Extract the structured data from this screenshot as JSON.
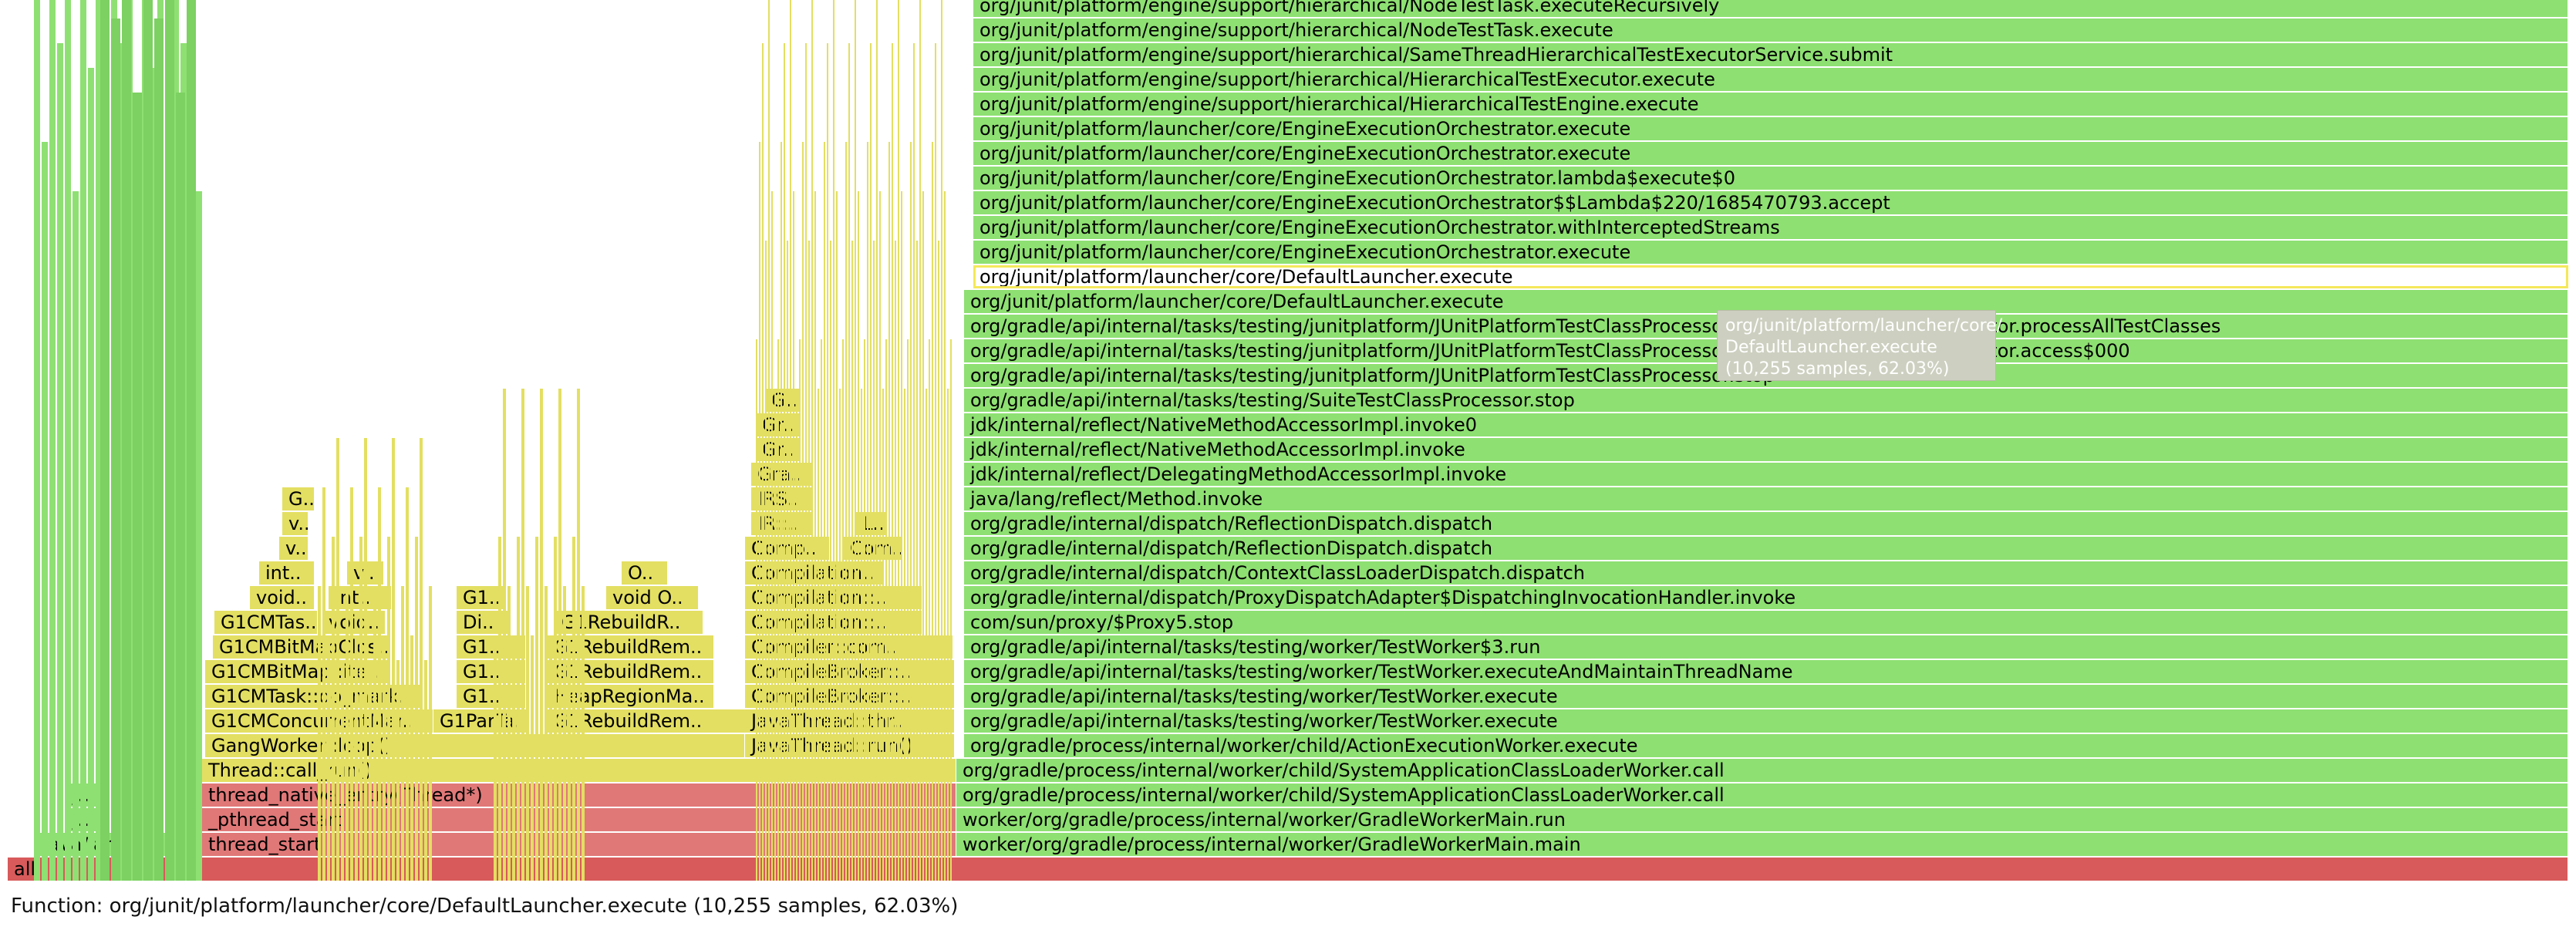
{
  "status_line": "Function: org/junit/platform/launcher/core/DefaultLauncher.execute (10,255 samples, 62.03%)",
  "tooltip": {
    "line1": "org/junit/platform/launcher/core/",
    "line2": "DefaultLauncher.execute",
    "line3": "(10,255 samples, 62.03%)"
  },
  "colors": {
    "root": "#d85a5a",
    "native": "#e07878",
    "vm": "#e3df62",
    "java": "#8ee072",
    "java_dark": "#7dd062"
  },
  "frames": [
    {
      "label": "all",
      "kind": "root"
    },
    {
      "label": "java/lang/..",
      "kind": "java"
    },
    {
      "label": "thread_start",
      "kind": "native"
    },
    {
      "label": "worker/org/gradle/process/internal/worker/GradleWorkerMain.main",
      "kind": "java"
    },
    {
      "label": "j..",
      "kind": "java"
    },
    {
      "label": "_pthread_start",
      "kind": "native"
    },
    {
      "label": "worker/org/gradle/process/internal/worker/GradleWorkerMain.run",
      "kind": "java"
    },
    {
      "label": "j..",
      "kind": "java"
    },
    {
      "label": "thread_native_entry(Thread*)",
      "kind": "native"
    },
    {
      "label": "org/gradle/process/internal/worker/child/SystemApplicationClassLoaderWorker.call",
      "kind": "java"
    },
    {
      "label": "Thread::call_run()",
      "kind": "vm"
    },
    {
      "label": "org/gradle/process/internal/worker/child/SystemApplicationClassLoaderWorker.call",
      "kind": "java"
    },
    {
      "label": "GangWorker::loop()",
      "kind": "vm"
    },
    {
      "label": "JavaThread::run()",
      "kind": "vm"
    },
    {
      "label": "org/gradle/process/internal/worker/child/ActionExecutionWorker.execute",
      "kind": "java"
    },
    {
      "label": "G1CMConcurrentMar..",
      "kind": "vm"
    },
    {
      "label": "G1ParTa..",
      "kind": "vm"
    },
    {
      "label": "G1RebuildRem..",
      "kind": "vm"
    },
    {
      "label": "JavaThread::thr..",
      "kind": "vm"
    },
    {
      "label": "org/gradle/api/internal/tasks/testing/worker/TestWorker.execute",
      "kind": "java"
    },
    {
      "label": "G1CMTask::do_mark..",
      "kind": "vm"
    },
    {
      "label": "G1..",
      "kind": "vm"
    },
    {
      "label": "HeapRegionMa..",
      "kind": "vm"
    },
    {
      "label": "CompileBroker::..",
      "kind": "vm"
    },
    {
      "label": "org/gradle/api/internal/tasks/testing/worker/TestWorker.execute",
      "kind": "java"
    },
    {
      "label": "G1CMBitMap::ite..",
      "kind": "vm"
    },
    {
      "label": "G1..",
      "kind": "vm"
    },
    {
      "label": "G1RebuildRem..",
      "kind": "vm"
    },
    {
      "label": "CompileBroker::..",
      "kind": "vm"
    },
    {
      "label": "org/gradle/api/internal/tasks/testing/worker/TestWorker.executeAndMaintainThreadName",
      "kind": "java"
    },
    {
      "label": "G1CMBitMapClos..",
      "kind": "vm"
    },
    {
      "label": "G1..",
      "kind": "vm"
    },
    {
      "label": "G1RebuildRem..",
      "kind": "vm"
    },
    {
      "label": "Compiler::com..",
      "kind": "vm"
    },
    {
      "label": "org/gradle/api/internal/tasks/testing/worker/TestWorker$3.run",
      "kind": "java"
    },
    {
      "label": "G1CMTas..",
      "kind": "vm"
    },
    {
      "label": "void..",
      "kind": "vm"
    },
    {
      "label": "Di..",
      "kind": "vm"
    },
    {
      "label": "G1RebuildR..",
      "kind": "vm"
    },
    {
      "label": "Compilation::..",
      "kind": "vm"
    },
    {
      "label": "com/sun/proxy/$Proxy5.stop",
      "kind": "java"
    },
    {
      "label": "void..",
      "kind": "vm"
    },
    {
      "label": "int..",
      "kind": "vm"
    },
    {
      "label": "G1..",
      "kind": "vm"
    },
    {
      "label": "void O..",
      "kind": "vm"
    },
    {
      "label": "Compilation::..",
      "kind": "vm"
    },
    {
      "label": "org/gradle/internal/dispatch/ProxyDispatchAdapter$DispatchingInvocationHandler.invoke",
      "kind": "java"
    },
    {
      "label": "int..",
      "kind": "vm"
    },
    {
      "label": "v..",
      "kind": "vm"
    },
    {
      "label": "O..",
      "kind": "vm"
    },
    {
      "label": "Compilation..",
      "kind": "vm"
    },
    {
      "label": "org/gradle/internal/dispatch/ContextClassLoaderDispatch.dispatch",
      "kind": "java"
    },
    {
      "label": "v..",
      "kind": "vm"
    },
    {
      "label": "Comp..",
      "kind": "vm"
    },
    {
      "label": "Com..",
      "kind": "vm"
    },
    {
      "label": "org/gradle/internal/dispatch/ReflectionDispatch.dispatch",
      "kind": "java"
    },
    {
      "label": "v..",
      "kind": "vm"
    },
    {
      "label": "IR::..",
      "kind": "vm"
    },
    {
      "label": "L..",
      "kind": "vm"
    },
    {
      "label": "org/gradle/internal/dispatch/ReflectionDispatch.dispatch",
      "kind": "java"
    },
    {
      "label": "G..",
      "kind": "vm"
    },
    {
      "label": "IRS..",
      "kind": "vm"
    },
    {
      "label": "java/lang/reflect/Method.invoke",
      "kind": "java"
    },
    {
      "label": "Gra..",
      "kind": "vm"
    },
    {
      "label": "jdk/internal/reflect/DelegatingMethodAccessorImpl.invoke",
      "kind": "java"
    },
    {
      "label": "Gr..",
      "kind": "vm"
    },
    {
      "label": "jdk/internal/reflect/NativeMethodAccessorImpl.invoke",
      "kind": "java"
    },
    {
      "label": "Gr..",
      "kind": "vm"
    },
    {
      "label": "jdk/internal/reflect/NativeMethodAccessorImpl.invoke0",
      "kind": "java"
    },
    {
      "label": "G..",
      "kind": "vm"
    },
    {
      "label": "org/gradle/api/internal/tasks/testing/SuiteTestClassProcessor.stop",
      "kind": "java"
    },
    {
      "label": "org/gradle/api/internal/tasks/testing/junitplatform/JUnitPlatformTestClassProcessor.stop",
      "kind": "java"
    },
    {
      "label": "org/gradle/api/internal/tasks/testing/junitplatform/JUnitPlatformTestClassProcessor$CollectAllTestClassesExecutor.access$000",
      "kind": "java"
    },
    {
      "label": "org/gradle/api/internal/tasks/testing/junitplatform/JUnitPlatformTestClassProcessor$CollectAllTestClassesExecutor.processAllTestClasses",
      "kind": "java"
    },
    {
      "label": "org/junit/platform/launcher/core/DefaultLauncher.execute",
      "kind": "java"
    },
    {
      "label": "org/junit/platform/launcher/core/DefaultLauncher.execute",
      "kind": "java"
    },
    {
      "label": "org/junit/platform/launcher/core/EngineExecutionOrchestrator.execute",
      "kind": "java"
    },
    {
      "label": "org/junit/platform/launcher/core/EngineExecutionOrchestrator.withInterceptedStreams",
      "kind": "java"
    },
    {
      "label": "org/junit/platform/launcher/core/EngineExecutionOrchestrator$$Lambda$220/1685470793.accept",
      "kind": "java"
    },
    {
      "label": "org/junit/platform/launcher/core/EngineExecutionOrchestrator.lambda$execute$0",
      "kind": "java"
    },
    {
      "label": "org/junit/platform/launcher/core/EngineExecutionOrchestrator.execute",
      "kind": "java"
    },
    {
      "label": "org/junit/platform/launcher/core/EngineExecutionOrchestrator.execute",
      "kind": "java"
    },
    {
      "label": "org/junit/platform/engine/support/hierarchical/HierarchicalTestEngine.execute",
      "kind": "java"
    },
    {
      "label": "org/junit/platform/engine/support/hierarchical/HierarchicalTestExecutor.execute",
      "kind": "java"
    },
    {
      "label": "org/junit/platform/engine/support/hierarchical/SameThreadHierarchicalTestExecutorService.submit",
      "kind": "java"
    },
    {
      "label": "org/junit/platform/engine/support/hierarchical/NodeTestTask.execute",
      "kind": "java"
    },
    {
      "label": "org/junit/platform/engine/support/hierarchical/NodeTestTask.executeRecursively",
      "kind": "java"
    }
  ]
}
